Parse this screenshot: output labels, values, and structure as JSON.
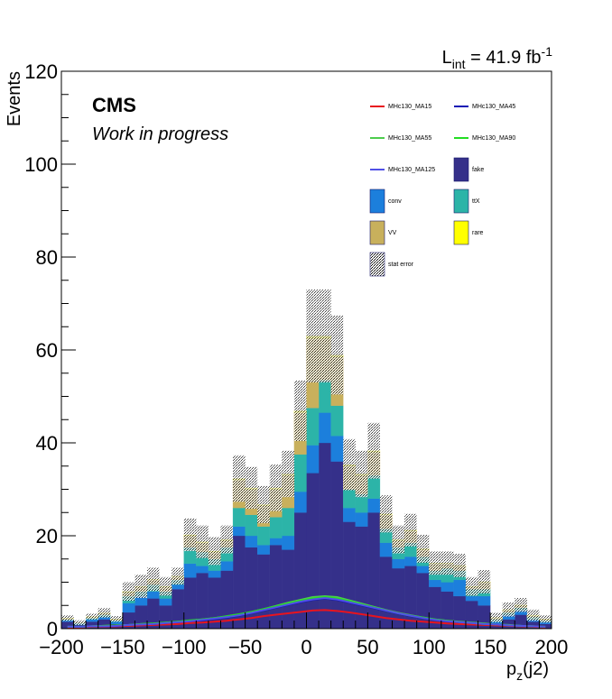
{
  "chart_data": {
    "type": "stacked-histogram",
    "title": "",
    "xlabel": "p_z(j2)",
    "ylabel": "Events",
    "xlim": [
      -200,
      200
    ],
    "ylim": [
      0,
      120
    ],
    "xticks": [
      -200,
      -150,
      -100,
      -50,
      0,
      50,
      100,
      150,
      200
    ],
    "yticks": [
      0,
      20,
      40,
      60,
      80,
      100,
      120
    ],
    "luminosity": {
      "prefix": "L",
      "subscript": "int",
      "value": " = 41.9 fb",
      "superscript": "-1"
    },
    "experiment_label": "CMS",
    "status_label": "Work in progress",
    "bin_edges_start": -200,
    "bin_width": 10,
    "stack_order": [
      "fake",
      "conv",
      "ttX",
      "VV",
      "rare"
    ],
    "series": [
      {
        "name": "fake",
        "color": "#35308a",
        "values": [
          1.5,
          0.8,
          1.5,
          2.0,
          1.0,
          3.5,
          5.0,
          6.5,
          5.0,
          8.5,
          11.0,
          12.0,
          11.0,
          12.5,
          20.0,
          17.5,
          16.0,
          18.0,
          17.0,
          25.0,
          33.5,
          40.0,
          36.0,
          23.0,
          22.0,
          25.0,
          15.5,
          13.0,
          13.5,
          12.0,
          9.0,
          8.0,
          7.0,
          6.0,
          5.0,
          1.0,
          2.0,
          3.0,
          1.5,
          1.0
        ]
      },
      {
        "name": "conv",
        "color": "#1c7fdc",
        "values": [
          0.3,
          0.2,
          0.5,
          0.5,
          0.5,
          2.0,
          2.0,
          1.5,
          1.5,
          1.0,
          3.0,
          1.5,
          1.5,
          2.0,
          2.0,
          2.5,
          2.0,
          1.5,
          3.0,
          4.5,
          6.0,
          6.5,
          5.5,
          3.0,
          3.0,
          3.0,
          3.0,
          2.0,
          2.0,
          1.5,
          1.5,
          2.0,
          3.5,
          1.0,
          2.0,
          0.5,
          1.0,
          1.0,
          0.5,
          0.5
        ]
      },
      {
        "name": "ttX",
        "color": "#2cb4a8",
        "values": [
          0.2,
          0.2,
          0.3,
          0.5,
          0.3,
          1.5,
          1.0,
          1.5,
          1.5,
          1.0,
          3.5,
          3.0,
          2.5,
          3.0,
          4.0,
          4.5,
          4.0,
          4.5,
          6.0,
          8.0,
          8.0,
          7.0,
          6.5,
          4.0,
          4.0,
          5.0,
          3.0,
          2.5,
          3.0,
          2.0,
          2.0,
          3.0,
          2.0,
          1.5,
          1.5,
          0.5,
          0.5,
          0.5,
          0.5,
          0.3
        ]
      },
      {
        "name": "VV",
        "color": "#c8b05c",
        "values": [
          0.2,
          0.1,
          0.2,
          0.3,
          0.2,
          0.8,
          1.0,
          1.0,
          1.0,
          0.7,
          2.5,
          2.0,
          1.5,
          1.5,
          6.0,
          5.5,
          4.5,
          6.0,
          7.0,
          9.0,
          15.0,
          9.0,
          10.5,
          5.0,
          4.0,
          5.0,
          3.0,
          1.5,
          2.5,
          1.5,
          1.5,
          1.0,
          1.0,
          0.5,
          1.5,
          0.3,
          0.5,
          0.5,
          0.3,
          0.2
        ]
      },
      {
        "name": "rare",
        "color": "#ffff00",
        "values": [
          0.1,
          0.0,
          0.1,
          0.1,
          0.1,
          0.2,
          0.1,
          0.1,
          0.1,
          0.1,
          0.2,
          0.2,
          0.2,
          0.2,
          0.3,
          0.3,
          0.2,
          0.3,
          0.3,
          0.4,
          0.5,
          0.5,
          0.4,
          0.3,
          0.3,
          0.3,
          0.2,
          0.2,
          0.2,
          0.2,
          0.1,
          0.1,
          0.1,
          0.1,
          0.1,
          0.1,
          0.1,
          0.1,
          0.1,
          0.1
        ]
      }
    ],
    "stat_error": {
      "name": "stat error",
      "values": [
        0.6,
        0.5,
        0.6,
        1.0,
        0.6,
        2.0,
        2.5,
        2.5,
        2.0,
        1.8,
        3.5,
        3.5,
        3.0,
        3.0,
        5.0,
        4.5,
        4.0,
        5.0,
        5.0,
        6.5,
        10.0,
        10.0,
        8.5,
        5.5,
        5.0,
        6.0,
        4.0,
        3.0,
        3.5,
        3.0,
        2.5,
        2.5,
        2.5,
        2.0,
        2.5,
        1.0,
        1.5,
        1.5,
        1.2,
        0.8
      ]
    },
    "signals": [
      {
        "name": "MHc130_MA15",
        "color": "#e8141e",
        "values": [
          0.3,
          0.3,
          0.4,
          0.4,
          0.5,
          0.6,
          0.7,
          0.8,
          0.9,
          1.0,
          1.2,
          1.3,
          1.5,
          1.7,
          2.0,
          2.3,
          2.7,
          3.0,
          3.3,
          3.6,
          3.9,
          4.0,
          3.8,
          3.5,
          3.1,
          2.7,
          2.3,
          2.0,
          1.7,
          1.5,
          1.3,
          1.1,
          1.0,
          0.9,
          0.8,
          0.7,
          0.6,
          0.5,
          0.4,
          0.3
        ]
      },
      {
        "name": "MHc130_MA45",
        "color": "#1015b5",
        "values": [
          0.4,
          0.4,
          0.5,
          0.5,
          0.6,
          0.8,
          0.9,
          1.0,
          1.2,
          1.4,
          1.6,
          1.8,
          2.1,
          2.4,
          2.8,
          3.3,
          3.9,
          4.5,
          5.1,
          5.7,
          6.2,
          6.5,
          6.2,
          5.6,
          5.0,
          4.4,
          3.8,
          3.2,
          2.7,
          2.3,
          1.9,
          1.6,
          1.4,
          1.2,
          1.0,
          0.9,
          0.7,
          0.6,
          0.5,
          0.4
        ]
      },
      {
        "name": "MHc130_MA55",
        "color": "#4dcc4d",
        "values": [
          0.4,
          0.4,
          0.5,
          0.6,
          0.7,
          0.8,
          1.0,
          1.1,
          1.3,
          1.5,
          1.7,
          2.0,
          2.3,
          2.6,
          3.0,
          3.6,
          4.2,
          4.9,
          5.6,
          6.2,
          6.8,
          7.0,
          6.8,
          6.1,
          5.4,
          4.7,
          4.0,
          3.4,
          2.9,
          2.4,
          2.0,
          1.7,
          1.5,
          1.3,
          1.1,
          0.9,
          0.8,
          0.6,
          0.5,
          0.4
        ]
      },
      {
        "name": "MHc130_MA90",
        "color": "#22dd22",
        "values": [
          0.4,
          0.4,
          0.5,
          0.6,
          0.7,
          0.8,
          1.0,
          1.1,
          1.3,
          1.5,
          1.8,
          2.0,
          2.3,
          2.7,
          3.1,
          3.6,
          4.2,
          4.8,
          5.4,
          6.0,
          6.5,
          6.8,
          6.5,
          5.9,
          5.2,
          4.6,
          3.9,
          3.3,
          2.8,
          2.4,
          2.0,
          1.7,
          1.4,
          1.2,
          1.0,
          0.9,
          0.7,
          0.6,
          0.5,
          0.4
        ]
      },
      {
        "name": "MHc130_MA125",
        "color": "#5050e6",
        "values": [
          0.4,
          0.4,
          0.5,
          0.5,
          0.6,
          0.8,
          0.9,
          1.0,
          1.2,
          1.4,
          1.6,
          1.9,
          2.2,
          2.5,
          2.9,
          3.4,
          4.0,
          4.6,
          5.2,
          5.8,
          6.3,
          6.6,
          6.3,
          5.7,
          5.1,
          4.5,
          3.9,
          3.3,
          2.8,
          2.3,
          1.9,
          1.6,
          1.4,
          1.2,
          1.0,
          0.9,
          0.7,
          0.6,
          0.5,
          0.4
        ]
      }
    ],
    "legend": {
      "placement": "top-right",
      "entries": [
        {
          "label": "MHc130_MA15",
          "kind": "line",
          "color": "#e8141e"
        },
        {
          "label": "MHc130_MA45",
          "kind": "line",
          "color": "#1015b5"
        },
        {
          "label": "MHc130_MA55",
          "kind": "line",
          "color": "#4dcc4d"
        },
        {
          "label": "MHc130_MA90",
          "kind": "line",
          "color": "#22dd22"
        },
        {
          "label": "MHc130_MA125",
          "kind": "line",
          "color": "#5050e6"
        },
        {
          "label": "fake",
          "kind": "box",
          "color": "#35308a"
        },
        {
          "label": "conv",
          "kind": "box",
          "color": "#1c7fdc"
        },
        {
          "label": "ttX",
          "kind": "box",
          "color": "#2cb4a8"
        },
        {
          "label": "VV",
          "kind": "box",
          "color": "#c8b05c"
        },
        {
          "label": "rare",
          "kind": "box",
          "color": "#ffff00"
        },
        {
          "label": "stat error",
          "kind": "hatch",
          "color": "#000000"
        }
      ]
    },
    "grid": false
  }
}
